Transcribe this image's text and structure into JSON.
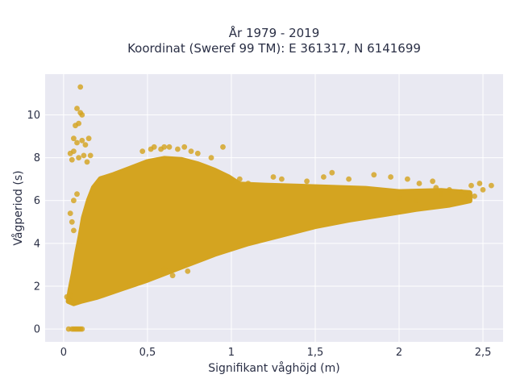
{
  "chart_data": {
    "type": "scatter",
    "title_lines": [
      "År 1979 - 2019",
      "Koordinat (Sweref 99 TM): E 361317, N 6141699"
    ],
    "xlabel": "Signifikant våghöjd (m)",
    "ylabel": "Vågperiod (s)",
    "xlim": [
      -0.11,
      2.62
    ],
    "ylim": [
      -0.6,
      11.9
    ],
    "x_ticks": [
      0,
      0.5,
      1,
      1.5,
      2,
      2.5
    ],
    "x_tick_labels": [
      "0",
      "0,5",
      "1",
      "1,5",
      "2",
      "2,5"
    ],
    "y_ticks": [
      0,
      2,
      4,
      6,
      8,
      10
    ],
    "y_tick_labels": [
      "0",
      "2",
      "4",
      "6",
      "8",
      "10"
    ],
    "grid": true,
    "marker_color": "#d4a420",
    "plot_background": "#e9e9f2",
    "series": [
      {
        "points": [
          [
            0.03,
            0
          ],
          [
            0.05,
            0
          ],
          [
            0.06,
            0
          ],
          [
            0.07,
            0
          ],
          [
            0.08,
            0
          ],
          [
            0.09,
            0
          ],
          [
            0.1,
            0
          ],
          [
            0.11,
            0
          ],
          [
            0.02,
            1.5
          ],
          [
            0.03,
            1.4
          ],
          [
            0.04,
            1.6
          ],
          [
            0.05,
            1.3
          ],
          [
            0.1,
            11.3
          ],
          [
            0.08,
            10.3
          ],
          [
            0.1,
            10.1
          ],
          [
            0.11,
            10.0
          ],
          [
            0.07,
            9.5
          ],
          [
            0.09,
            9.6
          ],
          [
            0.06,
            8.9
          ],
          [
            0.08,
            8.7
          ],
          [
            0.11,
            8.8
          ],
          [
            0.13,
            8.6
          ],
          [
            0.04,
            8.2
          ],
          [
            0.06,
            8.3
          ],
          [
            0.09,
            8.0
          ],
          [
            0.12,
            8.1
          ],
          [
            0.15,
            8.9
          ],
          [
            0.16,
            8.1
          ],
          [
            0.05,
            7.9
          ],
          [
            0.14,
            7.8
          ],
          [
            0.04,
            5.4
          ],
          [
            0.05,
            5.0
          ],
          [
            0.06,
            6.0
          ],
          [
            0.08,
            6.3
          ],
          [
            0.06,
            4.6
          ],
          [
            0.52,
            8.4
          ],
          [
            0.54,
            8.5
          ],
          [
            0.58,
            8.4
          ],
          [
            0.6,
            8.5
          ],
          [
            0.63,
            8.5
          ],
          [
            0.68,
            8.4
          ],
          [
            0.72,
            8.5
          ],
          [
            0.76,
            8.3
          ],
          [
            0.8,
            8.2
          ],
          [
            0.88,
            8.0
          ],
          [
            0.95,
            8.5
          ],
          [
            0.47,
            8.3
          ],
          [
            0.52,
            2.6
          ],
          [
            0.6,
            2.8
          ],
          [
            0.65,
            2.5
          ],
          [
            0.74,
            2.7
          ],
          [
            1.0,
            6.9
          ],
          [
            1.05,
            7.0
          ],
          [
            1.1,
            6.8
          ],
          [
            1.25,
            7.1
          ],
          [
            1.3,
            7.0
          ],
          [
            1.45,
            6.9
          ],
          [
            1.55,
            7.1
          ],
          [
            1.6,
            7.3
          ],
          [
            1.7,
            7.0
          ],
          [
            1.85,
            7.2
          ],
          [
            1.95,
            7.1
          ],
          [
            2.05,
            7.0
          ],
          [
            2.12,
            6.8
          ],
          [
            2.2,
            6.9
          ],
          [
            2.22,
            6.6
          ],
          [
            2.3,
            6.5
          ],
          [
            2.37,
            6.4
          ],
          [
            2.4,
            6.3
          ],
          [
            2.45,
            6.2
          ],
          [
            2.5,
            6.5
          ],
          [
            2.55,
            6.7
          ],
          [
            2.43,
            6.7
          ],
          [
            2.48,
            6.8
          ],
          [
            2.0,
            6.1
          ],
          [
            2.1,
            6.0
          ],
          [
            2.25,
            6.3
          ],
          [
            1.95,
            5.5
          ]
        ]
      }
    ]
  }
}
